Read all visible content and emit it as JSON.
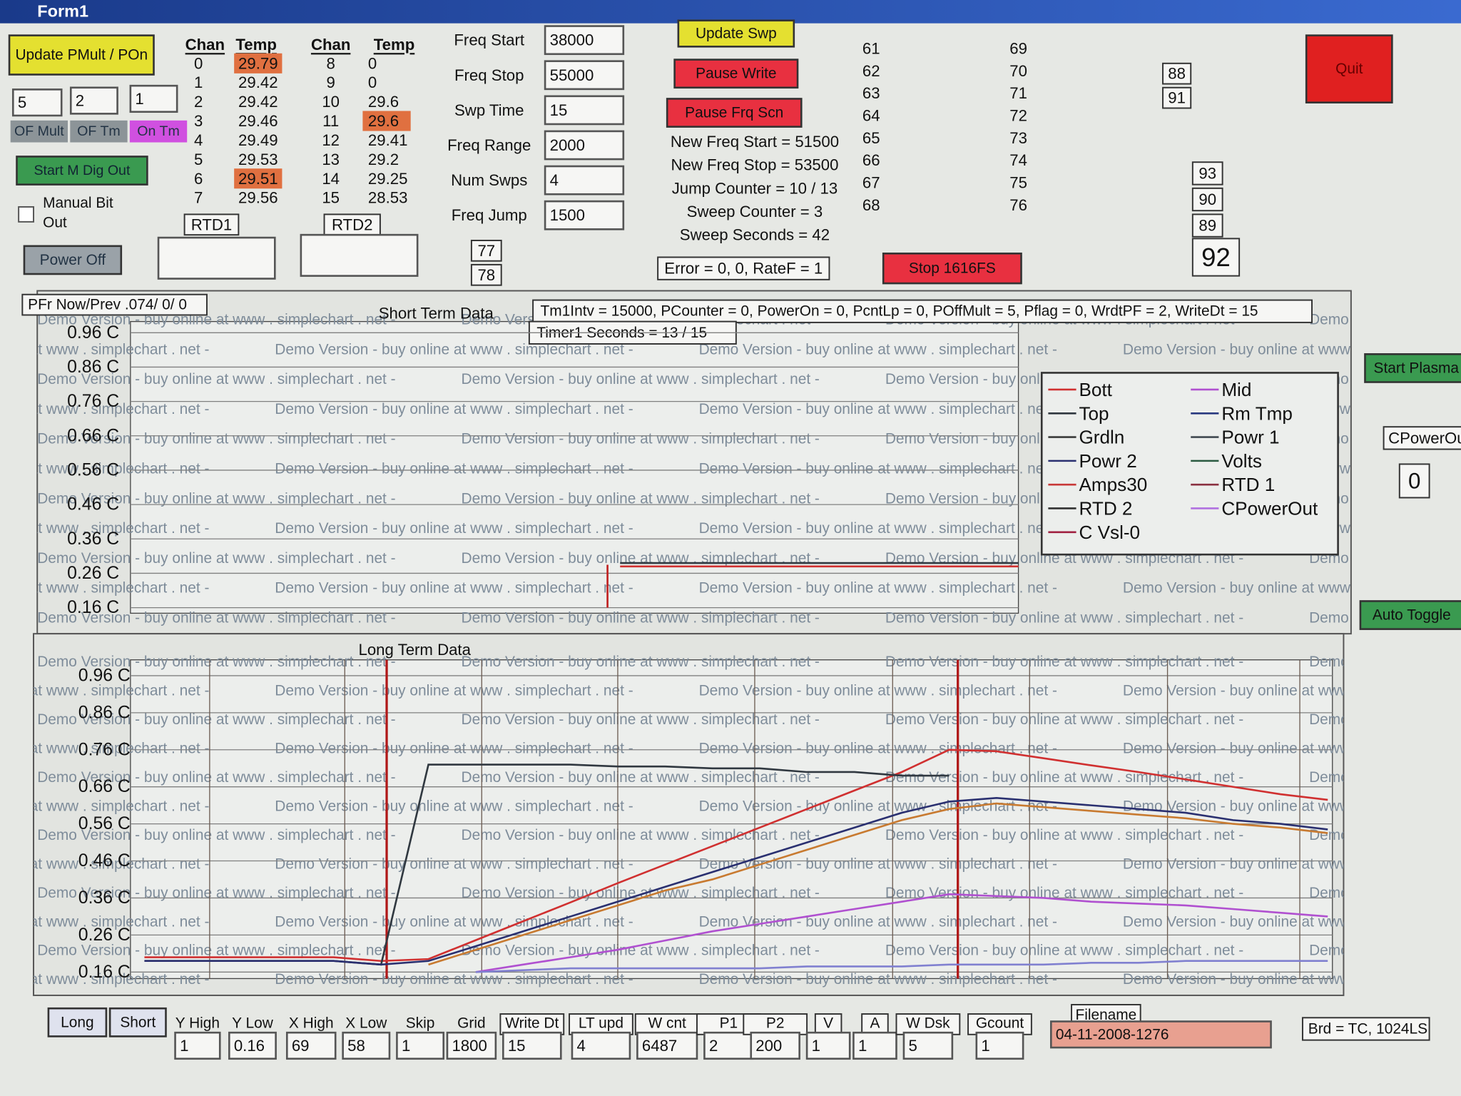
{
  "window": {
    "title": "Form1"
  },
  "pmult": {
    "button": "Update PMult / POn",
    "fields": [
      "5",
      "2",
      "1"
    ],
    "labels": [
      "OF Mult",
      "OF Tm",
      "On Tm"
    ]
  },
  "start_dig_out": "Start M Dig Out",
  "manual_bit": [
    "Manual Bit",
    "Out"
  ],
  "power_off": "Power Off",
  "rtd_tables": [
    {
      "headers": [
        "Chan",
        "Temp"
      ],
      "rows": [
        [
          "0",
          "29.79"
        ],
        [
          "1",
          "29.42"
        ],
        [
          "2",
          "29.42"
        ],
        [
          "3",
          "29.46"
        ],
        [
          "4",
          "29.49"
        ],
        [
          "5",
          "29.53"
        ],
        [
          "6",
          "29.51"
        ],
        [
          "7",
          "29.56"
        ]
      ],
      "highlight": [
        0,
        6
      ],
      "caption": "RTD1"
    },
    {
      "headers": [
        "Chan",
        "Temp"
      ],
      "rows": [
        [
          "8",
          "0"
        ],
        [
          "9",
          "0"
        ],
        [
          "10",
          "29.6"
        ],
        [
          "11",
          "29.6"
        ],
        [
          "12",
          "29.41"
        ],
        [
          "13",
          "29.2"
        ],
        [
          "14",
          "29.25"
        ],
        [
          "15",
          "28.53"
        ]
      ],
      "highlight": [
        3
      ],
      "caption": "RTD2"
    }
  ],
  "freq_fields": [
    {
      "label": "Freq Start",
      "value": "38000"
    },
    {
      "label": "Freq Stop",
      "value": "55000"
    },
    {
      "label": "Swp Time",
      "value": "15"
    },
    {
      "label": "Freq Range",
      "value": "2000"
    },
    {
      "label": "Num  Swps",
      "value": "4"
    },
    {
      "label": "Freq Jump",
      "value": "1500"
    }
  ],
  "small_boxes": [
    "77",
    "78"
  ],
  "sweep_buttons": [
    "Update Swp",
    "Pause Write",
    "Pause Frq Scn"
  ],
  "sweep_status": [
    "New Freq Start =  51500",
    "New Freq Stop =  53500",
    "Jump Counter =  10 / 13",
    "Sweep Counter =  3",
    "Sweep Seconds =  42"
  ],
  "error_status": "Error = 0, 0, RateF = 1",
  "stop_button": "Stop 1616FS",
  "channel_numbers": [
    [
      "61",
      "62",
      "63",
      "64",
      "65",
      "66",
      "67",
      "68"
    ],
    [
      "69",
      "70",
      "71",
      "72",
      "73",
      "74",
      "75",
      "76"
    ]
  ],
  "boxes": [
    "88",
    "91",
    "93",
    "90",
    "89",
    "92"
  ],
  "quit": "Quit",
  "right_panel": {
    "start_plasma": "Start Plasma",
    "cpowerout_label": "CPowerOut",
    "cpowerout_value": "0",
    "auto_toggle": "Auto Toggle"
  },
  "pfr": "PFr Now/Prev  .074/ 0/ 0",
  "status_line": "Tm1Intv = 15000, PCounter = 0, PowerOn = 0, PcntLp = 0, POffMult = 5, Pflag = 0, WrdtPF = 2, WriteDt = 15",
  "timer": "Timer1 Seconds =  13 / 15",
  "watermark": "Demo Version - buy online at www . simplechart . net -",
  "chart_data": [
    {
      "type": "line",
      "title": "Short Term Data",
      "ylim": [
        0.16,
        0.96
      ],
      "yticks": [
        {
          "value": 0.96,
          "label": "0.96 C"
        },
        {
          "value": 0.86,
          "label": "0.86 C"
        },
        {
          "value": 0.76,
          "label": "0.76 C"
        },
        {
          "value": 0.66,
          "label": "0.66 C"
        },
        {
          "value": 0.56,
          "label": "0.56 C"
        },
        {
          "value": 0.46,
          "label": "0.46 C"
        },
        {
          "value": 0.36,
          "label": "0.36 C"
        },
        {
          "value": 0.26,
          "label": "0.26 C"
        },
        {
          "value": 0.16,
          "label": "0.16 C"
        }
      ],
      "grid": true,
      "categories": [
        null,
        null,
        null,
        null,
        null,
        null,
        null,
        null,
        null,
        null,
        null,
        null,
        null,
        null,
        null,
        null,
        null,
        null,
        null,
        null,
        null
      ],
      "series": [
        {
          "name": "Bott",
          "color": "#d03030",
          "values": [
            null,
            null,
            null,
            null,
            null,
            null,
            null,
            null,
            null,
            null,
            null,
            0.28,
            0.28,
            0.28,
            0.28,
            0.28,
            0.28,
            0.28,
            0.28,
            0.28,
            0.28
          ]
        },
        {
          "name": "Mid",
          "color": "#b050d0",
          "values": [
            null,
            null,
            null,
            null,
            null,
            null,
            null,
            null,
            null,
            null,
            null,
            null,
            null,
            null,
            null,
            null,
            null,
            null,
            null,
            null,
            null
          ]
        },
        {
          "name": "Top",
          "color": "#303840",
          "values": [
            null,
            null,
            null,
            null,
            null,
            null,
            null,
            null,
            null,
            null,
            null,
            0.29,
            0.29,
            0.29,
            0.29,
            0.29,
            0.29,
            0.29,
            0.29,
            0.29,
            0.29
          ]
        },
        {
          "name": "Rm Tmp",
          "color": "#2a3a80",
          "values": [
            null,
            null,
            null,
            null,
            null,
            null,
            null,
            null,
            null,
            null,
            null,
            null,
            null,
            null,
            null,
            null,
            null,
            null,
            null,
            null,
            null
          ]
        },
        {
          "name": "Grdln",
          "color": "#3a3a3a",
          "values": [
            null,
            null,
            null,
            null,
            null,
            null,
            null,
            null,
            null,
            null,
            null,
            null,
            null,
            null,
            null,
            null,
            null,
            null,
            null,
            null,
            null
          ]
        },
        {
          "name": "Powr 1",
          "color": "#404850",
          "values": [
            null,
            null,
            null,
            null,
            null,
            null,
            null,
            null,
            null,
            null,
            null,
            null,
            null,
            null,
            null,
            null,
            null,
            null,
            null,
            null,
            null
          ]
        },
        {
          "name": "Powr 2",
          "color": "#2a3070",
          "values": [
            null,
            null,
            null,
            null,
            null,
            null,
            null,
            null,
            null,
            null,
            null,
            null,
            null,
            null,
            null,
            null,
            null,
            null,
            null,
            null,
            null
          ]
        },
        {
          "name": "Volts",
          "color": "#2a5a40",
          "values": [
            null,
            null,
            null,
            null,
            null,
            null,
            null,
            null,
            null,
            null,
            null,
            null,
            null,
            null,
            null,
            null,
            null,
            null,
            null,
            null,
            null
          ]
        },
        {
          "name": "Amps30",
          "color": "#c83838",
          "values": [
            null,
            null,
            null,
            null,
            null,
            null,
            null,
            null,
            null,
            null,
            null,
            null,
            null,
            null,
            null,
            null,
            null,
            null,
            null,
            null,
            null
          ]
        },
        {
          "name": "RTD 1",
          "color": "#8a3040",
          "values": [
            null,
            null,
            null,
            null,
            null,
            null,
            null,
            null,
            null,
            null,
            null,
            null,
            null,
            null,
            null,
            null,
            null,
            null,
            null,
            null,
            null
          ]
        },
        {
          "name": "RTD 2",
          "color": "#303030",
          "values": [
            null,
            null,
            null,
            null,
            null,
            null,
            null,
            null,
            null,
            null,
            null,
            null,
            null,
            null,
            null,
            null,
            null,
            null,
            null,
            null,
            null
          ]
        },
        {
          "name": "CPowerOut",
          "color": "#b070e0",
          "values": [
            null,
            null,
            null,
            null,
            null,
            null,
            null,
            null,
            null,
            null,
            null,
            null,
            null,
            null,
            null,
            null,
            null,
            null,
            null,
            null,
            null
          ]
        },
        {
          "name": "C Vsl-0",
          "color": "#a02040",
          "values": [
            null,
            null,
            null,
            null,
            null,
            null,
            null,
            null,
            null,
            null,
            null,
            null,
            null,
            null,
            null,
            null,
            null,
            null,
            null,
            null,
            null
          ]
        }
      ]
    },
    {
      "type": "line",
      "title": "Long Term Data",
      "ylim": [
        0.16,
        0.96
      ],
      "yticks": [
        {
          "value": 0.96,
          "label": "0.96 C"
        },
        {
          "value": 0.86,
          "label": "0.86 C"
        },
        {
          "value": 0.76,
          "label": "0.76 C"
        },
        {
          "value": 0.66,
          "label": "0.66 C"
        },
        {
          "value": 0.56,
          "label": "0.56 C"
        },
        {
          "value": 0.46,
          "label": "0.46 C"
        },
        {
          "value": 0.36,
          "label": "0.36 C"
        },
        {
          "value": 0.26,
          "label": "0.26 C"
        },
        {
          "value": 0.16,
          "label": "0.16 C"
        }
      ],
      "grid": true,
      "categories": [
        null,
        null,
        null,
        null,
        null,
        null,
        null,
        null,
        null,
        null,
        null,
        null,
        null,
        null,
        null,
        null,
        null,
        null,
        null,
        null,
        null,
        null,
        null,
        null,
        null,
        null
      ],
      "series": [
        {
          "color": "#d03030",
          "values": [
            0.2,
            0.2,
            0.2,
            0.2,
            0.2,
            0.19,
            0.195,
            0.246,
            0.297,
            0.348,
            0.4,
            0.45,
            0.5,
            0.55,
            0.6,
            0.65,
            0.7,
            0.76,
            0.756,
            0.737,
            0.718,
            0.7,
            0.68,
            0.66,
            0.64,
            0.625
          ]
        },
        {
          "color": "#303840",
          "values": [
            0.19,
            0.19,
            0.19,
            0.19,
            0.19,
            0.18,
            0.72,
            0.72,
            0.72,
            0.72,
            0.715,
            0.715,
            0.71,
            0.71,
            0.7,
            0.7,
            0.69,
            0.69,
            null,
            null,
            null,
            null,
            null,
            null,
            null,
            null
          ]
        },
        {
          "color": "#2a3070",
          "values": [
            0.19,
            0.19,
            0.19,
            0.19,
            0.19,
            0.18,
            0.19,
            0.23,
            0.27,
            0.31,
            0.35,
            0.39,
            0.43,
            0.47,
            0.51,
            0.55,
            0.59,
            0.62,
            0.63,
            0.62,
            0.61,
            0.6,
            0.59,
            0.57,
            0.56,
            0.545
          ]
        },
        {
          "color": "#c87a30",
          "values": [
            null,
            null,
            null,
            null,
            null,
            null,
            0.18,
            0.22,
            0.26,
            0.3,
            0.34,
            0.38,
            0.41,
            0.45,
            0.49,
            0.53,
            0.57,
            0.6,
            0.615,
            0.605,
            0.595,
            0.585,
            0.575,
            0.56,
            0.55,
            0.535
          ]
        },
        {
          "color": "#b050d0",
          "values": [
            null,
            null,
            null,
            null,
            null,
            null,
            null,
            0.16,
            0.18,
            0.2,
            0.22,
            0.245,
            0.27,
            0.29,
            0.31,
            0.33,
            0.35,
            0.37,
            0.365,
            0.36,
            0.35,
            0.345,
            0.34,
            0.33,
            0.32,
            0.31
          ]
        },
        {
          "color": "#8080d0",
          "values": [
            null,
            null,
            null,
            null,
            null,
            null,
            null,
            0.16,
            0.165,
            0.17,
            0.17,
            0.17,
            0.17,
            0.17,
            0.175,
            0.175,
            0.175,
            0.18,
            0.18,
            0.18,
            0.185,
            0.185,
            0.19,
            0.19,
            0.19,
            0.19
          ]
        }
      ]
    }
  ],
  "bottom": {
    "buttons": [
      "Long",
      "Short"
    ],
    "fields": [
      {
        "label": "Y High",
        "value": "1",
        "boxed": false
      },
      {
        "label": "Y Low",
        "value": "0.16",
        "boxed": false
      },
      {
        "label": "X High",
        "value": "69",
        "boxed": false
      },
      {
        "label": "X Low",
        "value": "58",
        "boxed": false
      },
      {
        "label": "Skip",
        "value": "1",
        "boxed": false
      },
      {
        "label": "Grid",
        "value": "1800",
        "boxed": false
      },
      {
        "label": "Write Dt",
        "value": "15",
        "boxed": true
      },
      {
        "label": "LT upd",
        "value": "4",
        "boxed": true
      },
      {
        "label": "W cnt",
        "value": "6487",
        "boxed": true
      },
      {
        "label": "P1",
        "value": "2",
        "boxed": true
      },
      {
        "label": "P2",
        "value": "200",
        "boxed": true
      },
      {
        "label": "V",
        "value": "1",
        "boxed": true
      },
      {
        "label": "A",
        "value": "1",
        "boxed": true
      },
      {
        "label": "W Dsk",
        "value": "5",
        "boxed": true
      },
      {
        "label": "Gcount",
        "value": "1",
        "boxed": true
      }
    ],
    "filename": {
      "label": "Filename",
      "value": "04-11-2008-1276"
    },
    "board": "Brd = TC, 1024LS"
  }
}
